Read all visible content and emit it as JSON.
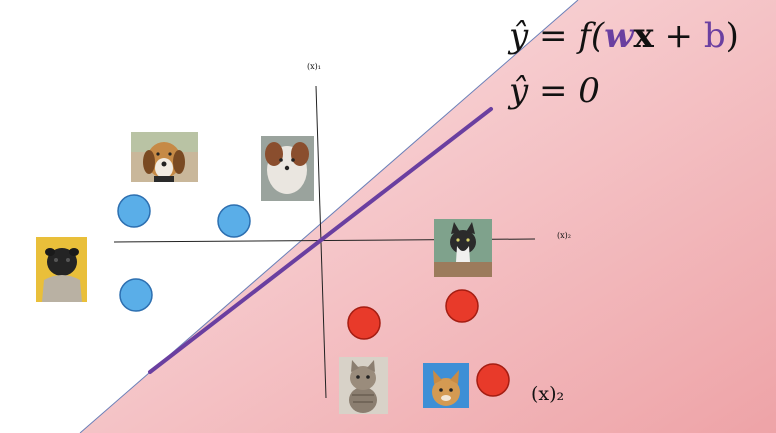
{
  "equations": {
    "decision": "ŷ = f(wx + b)",
    "decision_parts": {
      "lhs": "ŷ",
      "eq": " = ",
      "f": "f(",
      "w": "w",
      "x": "x",
      "plus": " + ",
      "b": "b",
      "close": ")"
    },
    "boundary": "ŷ = 0"
  },
  "axes": {
    "vertical_label": "(x)₁",
    "horizontal_label": "(x)₂",
    "big_label": "(x)₂"
  },
  "colors": {
    "positive_region": "#f3c6c8",
    "negative_region": "#ffffff",
    "boundary_line": "#6a3fa0",
    "dog_marker": "#5aaee8",
    "cat_marker": "#e83a2a"
  },
  "images": [
    {
      "name": "beagle-dog-photo",
      "kind": "dog"
    },
    {
      "name": "papillon-dog-photo",
      "kind": "dog"
    },
    {
      "name": "pug-dog-photo",
      "kind": "dog"
    },
    {
      "name": "sitting-cat-photo",
      "kind": "cat"
    },
    {
      "name": "tabby-kitten-photo",
      "kind": "cat"
    },
    {
      "name": "orange-kitten-photo",
      "kind": "cat"
    }
  ]
}
